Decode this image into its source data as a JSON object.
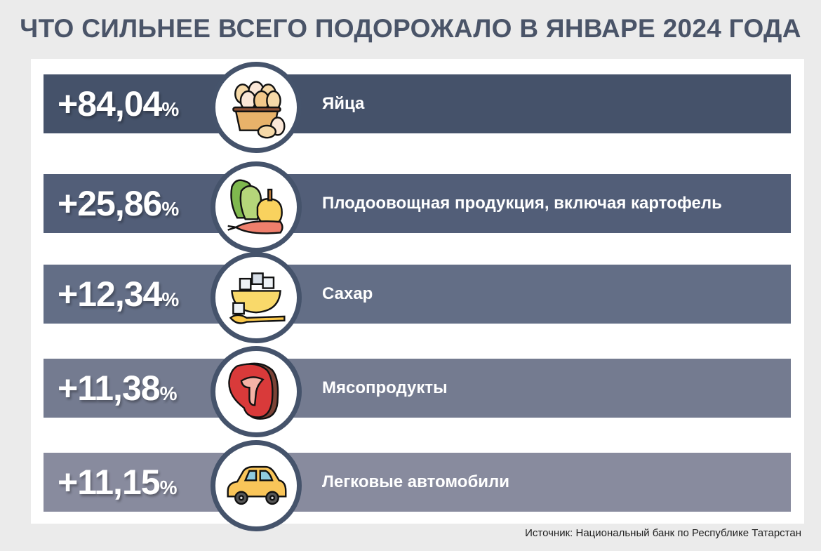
{
  "title": "ЧТО СИЛЬНЕЕ ВСЕГО ПОДОРОЖАЛО В ЯНВАРЕ 2024 ГОДА",
  "source": "Источник: Национальный банк по Республике Татарстан",
  "colors": {
    "title": "#4a5468",
    "circle_border": "#45536b",
    "bars": [
      "#45526a",
      "#525e78",
      "#636e86",
      "#747b90",
      "#888b9e"
    ]
  },
  "items": [
    {
      "value": "+84,04",
      "unit": "%",
      "label": "Яйца",
      "icon": "eggs-basket-icon"
    },
    {
      "value": "+25,86",
      "unit": "%",
      "label": "Плодоовощная продукция, включая картофель",
      "icon": "vegetables-icon"
    },
    {
      "value": "+12,34",
      "unit": "%",
      "label": "Сахар",
      "icon": "sugar-bowl-icon"
    },
    {
      "value": "+11,38",
      "unit": "%",
      "label": "Мясопродукты",
      "icon": "steak-icon"
    },
    {
      "value": "+11,15",
      "unit": "%",
      "label": "Легковые автомобили",
      "icon": "car-icon"
    }
  ],
  "chart_data": {
    "type": "table",
    "title": "ЧТО СИЛЬНЕЕ ВСЕГО ПОДОРОЖАЛО В ЯНВАРЕ 2024 ГОДА",
    "categories": [
      "Яйца",
      "Плодоовощная продукция, включая картофель",
      "Сахар",
      "Мясопродукты",
      "Легковые автомобили"
    ],
    "values": [
      84.04,
      25.86,
      12.34,
      11.38,
      11.15
    ],
    "unit": "%"
  }
}
